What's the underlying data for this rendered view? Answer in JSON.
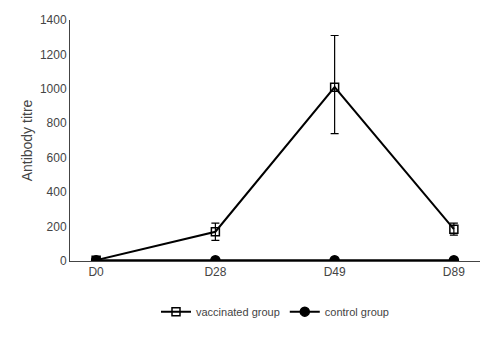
{
  "chart_data": {
    "type": "line",
    "categories": [
      "D0",
      "D28",
      "D49",
      "D89"
    ],
    "ylabel": "Antibody titre",
    "ylim": [
      0,
      1400
    ],
    "yticks": [
      0,
      200,
      400,
      600,
      800,
      1000,
      1200,
      1400
    ],
    "grid": false,
    "legend": "bottom",
    "series": [
      {
        "name": "vaccinated group",
        "color": "#000000",
        "marker": "square-open",
        "values": [
          5,
          170,
          1010,
          185
        ],
        "error_plus": [
          5,
          50,
          300,
          35
        ],
        "error_minus": [
          5,
          50,
          270,
          35
        ]
      },
      {
        "name": "control group",
        "color": "#000000",
        "marker": "circle",
        "values": [
          5,
          5,
          5,
          5
        ],
        "error": [
          3,
          3,
          3,
          3
        ]
      }
    ]
  }
}
